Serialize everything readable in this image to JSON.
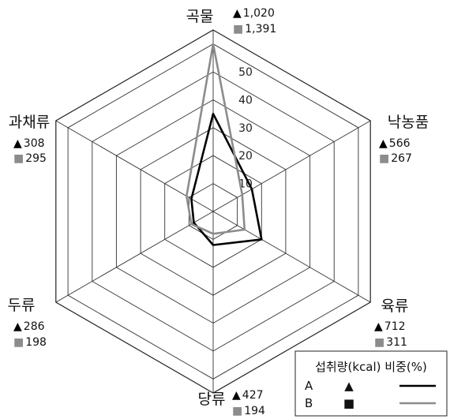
{
  "chart_data": {
    "type": "radar",
    "categories": [
      "곡물",
      "낙농품",
      "육류",
      "당류",
      "두류",
      "과채류"
    ],
    "rticks": [
      10,
      20,
      30,
      40,
      50
    ],
    "rmax": 65,
    "series": [
      {
        "name": "A",
        "marker": "▲",
        "color": "#000000",
        "kcal": [
          "1,020",
          "566",
          "712",
          "427",
          "286",
          "308"
        ],
        "percent": [
          35,
          16,
          20,
          12,
          8,
          9
        ]
      },
      {
        "name": "B",
        "marker": "■",
        "color": "#8c8c8c",
        "kcal": [
          "1,391",
          "267",
          "311",
          "194",
          "198",
          "295"
        ],
        "percent": [
          60,
          12,
          13,
          8,
          9,
          11
        ]
      }
    ],
    "legend": {
      "title": "섭취량(kcal) 비중(%)",
      "placement": "bottom-right"
    }
  }
}
